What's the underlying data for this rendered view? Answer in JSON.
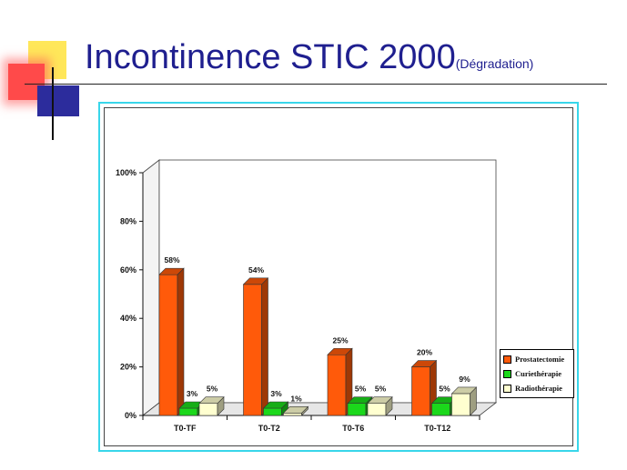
{
  "title": {
    "main": "Incontinence  STIC 2000",
    "sub": "(Dégradation)"
  },
  "colors": {
    "title": "#1f1f8f",
    "frame_border": "#38d6ea"
  },
  "chart_data": {
    "type": "bar",
    "categories": [
      "T0-TF",
      "T0-T2",
      "T0-T6",
      "T0-T12"
    ],
    "series": [
      {
        "name": "Prostatectomie",
        "values": [
          58,
          54,
          25,
          20
        ],
        "labels": [
          "58%",
          "54%",
          "25%",
          "20%"
        ],
        "color": "#ff5a0a"
      },
      {
        "name": "Curiethérapie",
        "values": [
          3,
          3,
          5,
          5
        ],
        "labels": [
          "3%",
          "3%",
          "5%",
          "5%"
        ],
        "color": "#1bd81b"
      },
      {
        "name": "Radiothérapie",
        "values": [
          5,
          1,
          5,
          9
        ],
        "labels": [
          "5%",
          "1%",
          "5%",
          "9%"
        ],
        "color": "#ffffd0"
      }
    ],
    "ylim": [
      0,
      100
    ],
    "yticks": [
      0,
      20,
      40,
      60,
      80,
      100
    ],
    "ytick_labels": [
      "0%",
      "20%",
      "40%",
      "60%",
      "80%",
      "100%"
    ],
    "grid": false,
    "legend": "right",
    "style": "3d-bar"
  }
}
